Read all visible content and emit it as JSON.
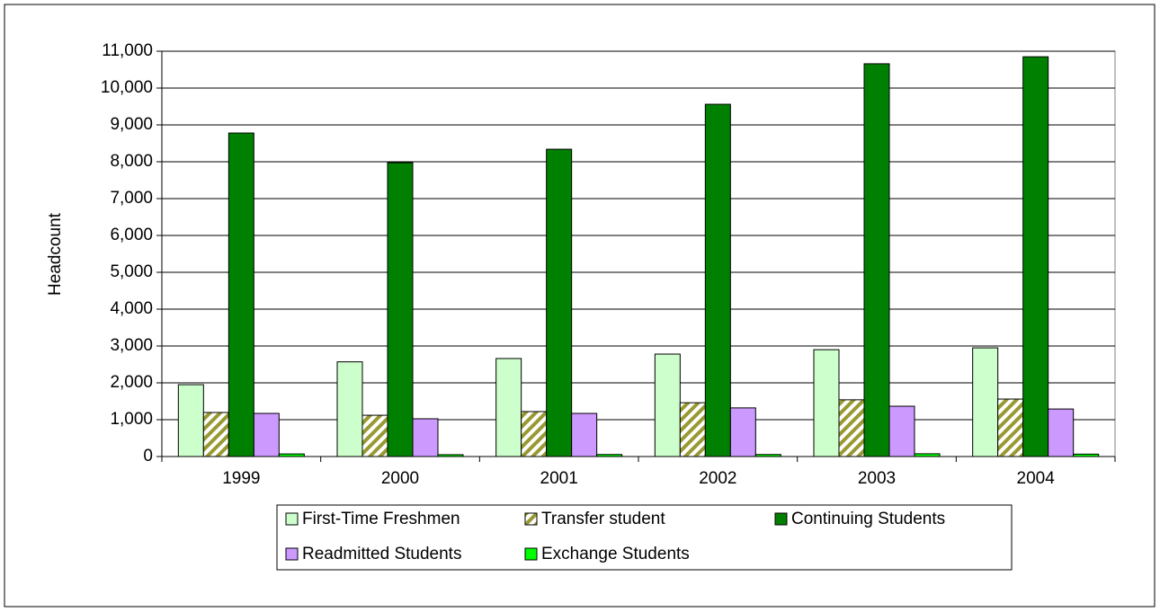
{
  "chart_data": {
    "type": "bar",
    "ylabel": "Headcount",
    "categories": [
      "1999",
      "2000",
      "2001",
      "2002",
      "2003",
      "2004"
    ],
    "series": [
      {
        "name": "First-Time Freshmen",
        "color": "#ccffcc",
        "values": [
          1950,
          2570,
          2660,
          2780,
          2900,
          2950
        ]
      },
      {
        "name": "Transfer student",
        "color": "#999933",
        "pattern": "diagonal",
        "values": [
          1195,
          1120,
          1220,
          1460,
          1540,
          1560
        ]
      },
      {
        "name": "Continuing Students",
        "color": "#008000",
        "values": [
          8780,
          7975,
          8340,
          9560,
          10660,
          10850
        ]
      },
      {
        "name": "Readmitted Students",
        "color": "#cc99ff",
        "values": [
          1170,
          1025,
          1170,
          1320,
          1365,
          1290
        ]
      },
      {
        "name": "Exchange Students",
        "color": "#00ff00",
        "values": [
          70,
          50,
          55,
          55,
          75,
          65
        ]
      }
    ],
    "ylim": [
      0,
      11000
    ],
    "yticks": [
      0,
      {
        "value": 1000,
        "label": "1,000"
      },
      {
        "value": 2000,
        "label": "2,000"
      },
      {
        "value": 3000,
        "label": "3,000"
      },
      {
        "value": 4000,
        "label": "4,000"
      },
      {
        "value": 5000,
        "label": "5,000"
      },
      {
        "value": 6000,
        "label": "6,000"
      },
      {
        "value": 7000,
        "label": "7,000"
      },
      {
        "value": 8000,
        "label": "8,000"
      },
      {
        "value": 9000,
        "label": "9,000"
      },
      {
        "value": 10000,
        "label": "10,000"
      },
      {
        "value": 11000,
        "label": "11,000"
      }
    ],
    "grid": true,
    "legend": "bottom"
  }
}
